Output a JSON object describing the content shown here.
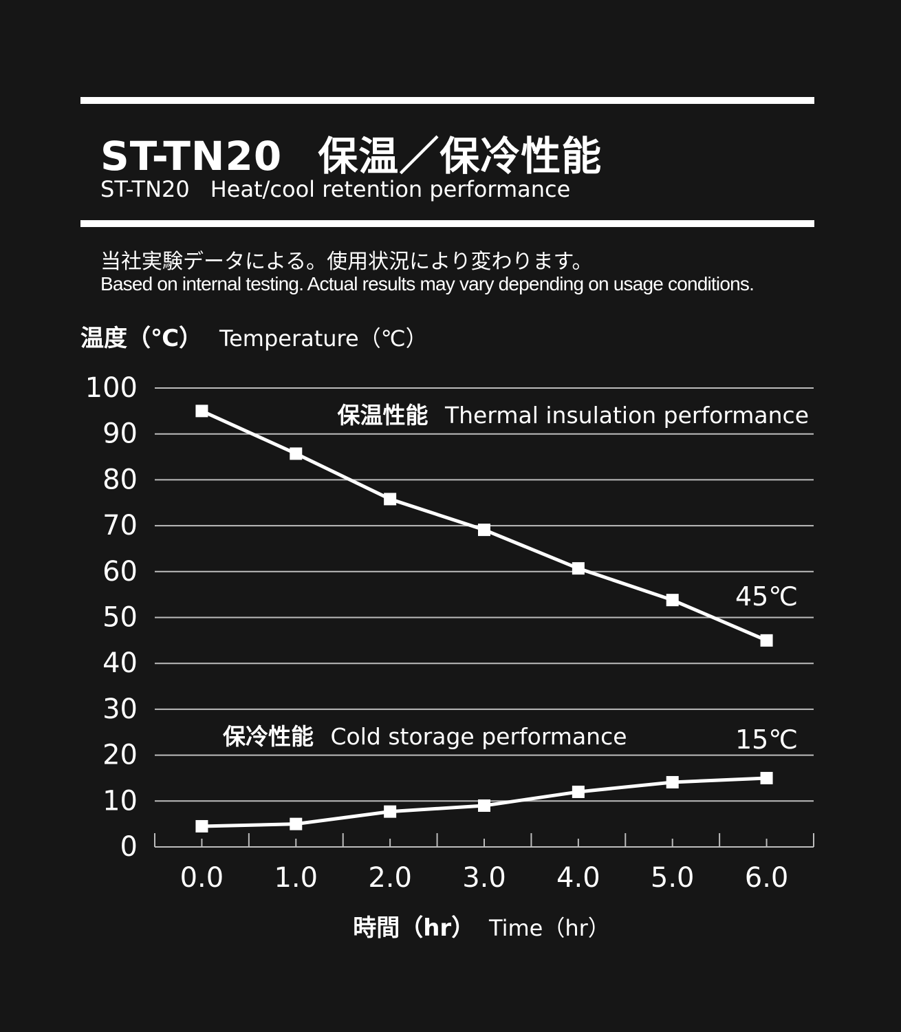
{
  "header": {
    "title_model": "ST-TN20",
    "title_ja": "保温／保冷性能",
    "subtitle_model": "ST-TN20",
    "subtitle_en": "Heat/cool retention performance"
  },
  "notes": {
    "ja": "当社実験データによる。使用状況により変わります。",
    "en": "Based on internal testing. Actual results may vary depending on usage conditions."
  },
  "colors": {
    "background": "#161616",
    "foreground": "#ffffff",
    "grid": "#bdbdbd"
  },
  "chart_data": {
    "type": "line",
    "ylabel_ja": "温度（℃）",
    "ylabel_en": "Temperature（℃）",
    "xlabel_ja": "時間（hr）",
    "xlabel_en": "Time（hr）",
    "x": [
      "0.0",
      "1.0",
      "2.0",
      "3.0",
      "4.0",
      "5.0",
      "6.0"
    ],
    "x_values": [
      0,
      1,
      2,
      3,
      4,
      5,
      6
    ],
    "xlim": [
      -0.5,
      6.5
    ],
    "ylim": [
      0,
      100
    ],
    "y_ticks": [
      0,
      10,
      20,
      30,
      40,
      50,
      60,
      70,
      80,
      90,
      100
    ],
    "grid": true,
    "marker": "square",
    "series": [
      {
        "key": "hot",
        "label_ja": "保温性能",
        "label_en": "Thermal insulation performance",
        "values": [
          95,
          85.7,
          75.8,
          69.1,
          60.7,
          53.8,
          45
        ],
        "end_label": "45℃"
      },
      {
        "key": "cold",
        "label_ja": "保冷性能",
        "label_en": "Cold storage performance",
        "values": [
          4.5,
          5,
          7.7,
          9,
          12,
          14.1,
          15
        ],
        "end_label": "15℃"
      }
    ]
  }
}
